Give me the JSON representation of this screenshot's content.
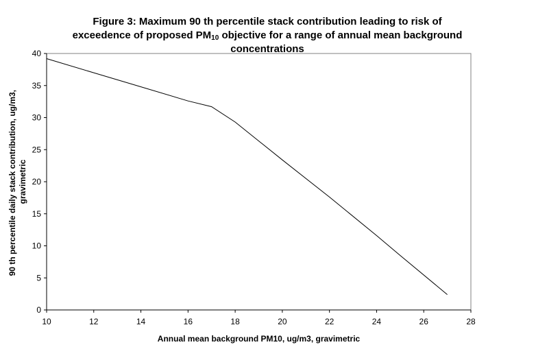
{
  "title": {
    "line1": "Figure 3: Maximum 90 th percentile stack contribution leading to risk of",
    "line2_pre": "exceedence of proposed PM",
    "line2_sub": "10",
    "line2_post": " objective for a range of annual mean background",
    "line3": "concentrations"
  },
  "chart_data": {
    "type": "line",
    "title": "Figure 3: Maximum 90 th percentile stack contribution leading to risk of exceedence of proposed PM10 objective for a range of annual mean background concentrations",
    "xlabel": "Annual mean background PM10, ug/m3, gravimetric",
    "ylabel_lines": [
      "90 th percentile daily stack contribution, ug/m3,",
      "gravimetric"
    ],
    "xlim": [
      10,
      28
    ],
    "ylim": [
      0,
      40
    ],
    "x_ticks": [
      10,
      12,
      14,
      16,
      18,
      20,
      22,
      24,
      26,
      28
    ],
    "y_ticks": [
      0,
      5,
      10,
      15,
      20,
      25,
      30,
      35,
      40
    ],
    "grid": false,
    "legend": "none",
    "series": [
      {
        "x": [
          10,
          12,
          14,
          16,
          17,
          18,
          20,
          22,
          24,
          25,
          27
        ],
        "y": [
          39.2,
          37.0,
          34.8,
          32.6,
          31.7,
          29.3,
          23.4,
          17.6,
          11.6,
          8.5,
          2.4
        ]
      }
    ],
    "line_color": "#000000"
  }
}
